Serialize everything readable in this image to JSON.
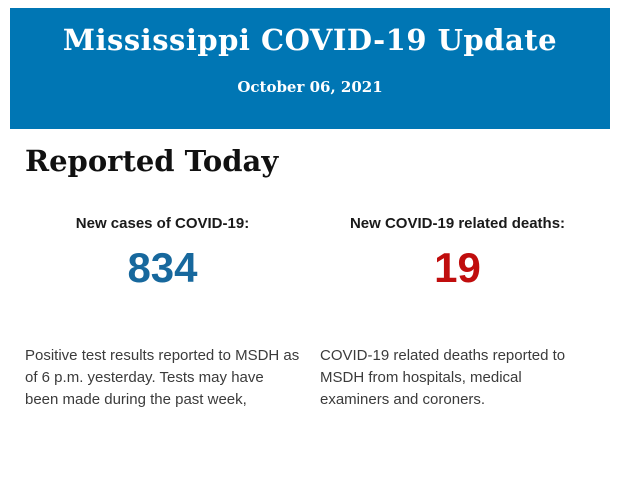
{
  "header": {
    "title": "Mississippi COVID-19 Update",
    "date": "October 06, 2021",
    "background_color": "#0076b4",
    "text_color": "#ffffff"
  },
  "main": {
    "heading": "Reported Today",
    "stats": [
      {
        "label": "New cases of COVID-19:",
        "value": "834",
        "value_color": "#17689d",
        "description": "Positive test results reported to MSDH as of 6 p.m. yesterday. Tests may have been made during the past week,"
      },
      {
        "label": "New COVID-19 related deaths:",
        "value": "19",
        "value_color": "#c00d0d",
        "description": "COVID-19 related deaths reported to MSDH from hospitals, medical examiners and coroners."
      }
    ]
  }
}
